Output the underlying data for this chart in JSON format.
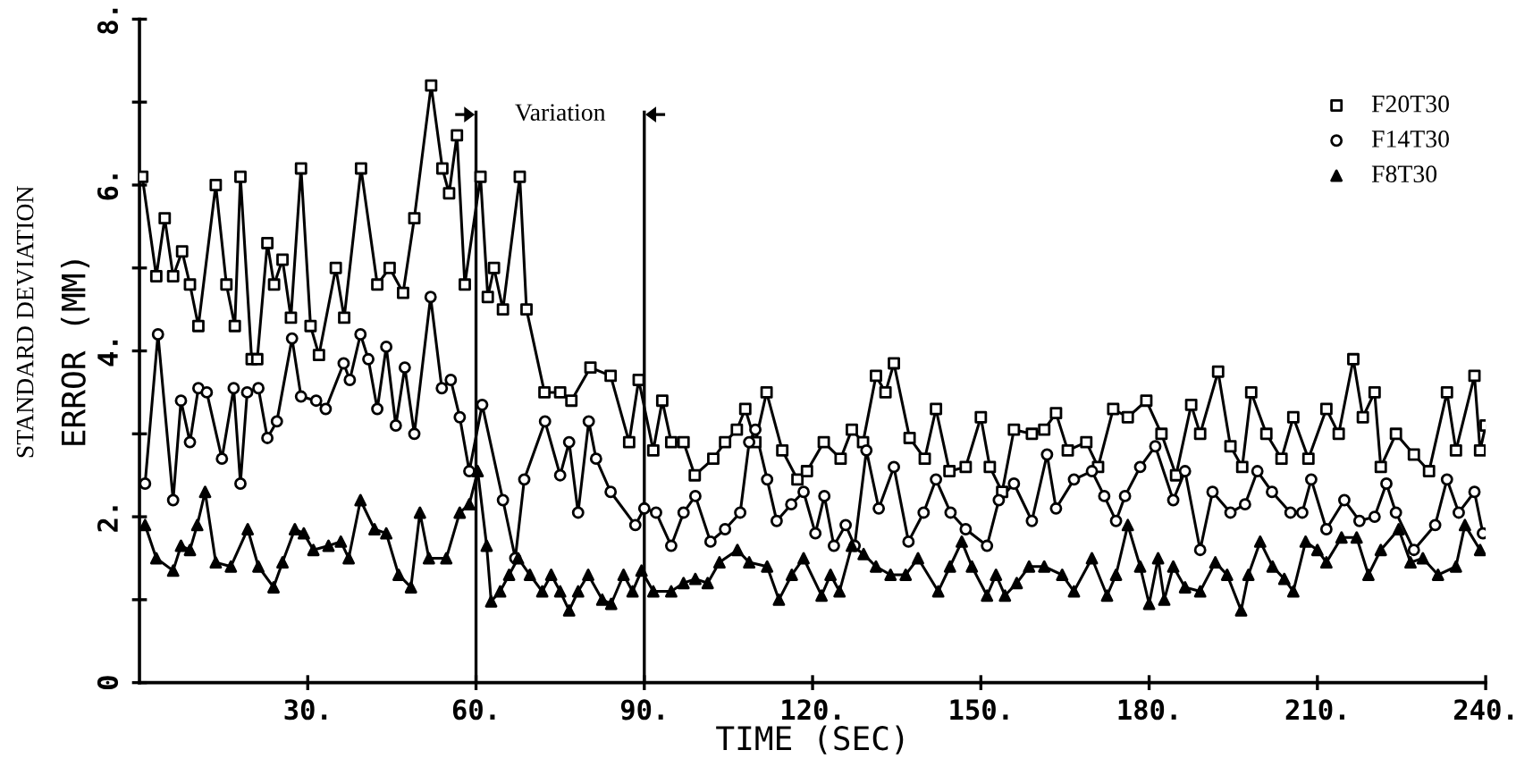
{
  "chart_data": {
    "type": "line",
    "xlabel": "TIME (SEC)",
    "ylabel": "ERROR (MM)",
    "annotations": [
      "STANDARD DEVIATION",
      "Variation"
    ],
    "xlim": [
      0,
      240
    ],
    "xticks": [
      {
        "value": 30,
        "label": "30."
      },
      {
        "value": 60,
        "label": "60."
      },
      {
        "value": 90,
        "label": "90."
      },
      {
        "value": 120,
        "label": "120."
      },
      {
        "value": 150,
        "label": "150."
      },
      {
        "value": 180,
        "label": "180."
      },
      {
        "value": 210,
        "label": "210."
      },
      {
        "value": 240,
        "label": "240."
      }
    ],
    "ylim": [
      0,
      8
    ],
    "yticks": [
      {
        "value": 0,
        "label": "0"
      },
      {
        "value": 1,
        "label": null
      },
      {
        "value": 2,
        "label": "2."
      },
      {
        "value": 3,
        "label": null
      },
      {
        "value": 4,
        "label": "4."
      },
      {
        "value": 5,
        "label": null
      },
      {
        "value": 6,
        "label": "6."
      },
      {
        "value": 7,
        "label": null
      },
      {
        "value": 8,
        "label": "8."
      }
    ],
    "ref_lines": [
      {
        "axis": "x",
        "value": 60,
        "color": "#000000"
      },
      {
        "axis": "x",
        "value": 90,
        "color": "#000000"
      }
    ],
    "grid": false,
    "legend": "top right",
    "line_style": "solid",
    "series": [
      {
        "name": "F20T30",
        "color": "#000000",
        "marker": "square",
        "x": [
          0.5,
          3,
          4.5,
          6,
          7.6,
          9,
          10.5,
          13.6,
          15.5,
          17,
          18,
          20,
          21,
          22.8,
          24,
          25.5,
          27,
          28.8,
          30.5,
          32,
          35,
          36.5,
          39.5,
          42.4,
          44.6,
          47,
          49,
          52,
          54,
          55.2,
          56.6,
          58,
          60.8,
          62.1,
          63.2,
          64.8,
          67.8,
          69,
          72.2,
          75,
          77,
          80.4,
          84,
          87.3,
          89,
          91.6,
          93.2,
          94.8,
          97,
          99,
          102.3,
          104.4,
          106.5,
          108,
          109.8,
          111.8,
          114.6,
          117.3,
          119,
          122,
          125,
          127,
          129,
          131.3,
          133,
          134.5,
          137.3,
          140,
          142,
          144.4,
          147.3,
          150,
          151.6,
          153.8,
          155.9,
          159.1,
          161.3,
          163.4,
          165.5,
          168.8,
          170.9,
          173.6,
          176.2,
          179.5,
          182.2,
          184.8,
          187.5,
          189.1,
          192.3,
          194.5,
          196.6,
          198.2,
          200.9,
          203.6,
          205.7,
          208.4,
          211.6,
          213.8,
          216.4,
          218.1,
          220.2,
          221.3,
          224,
          227.2,
          229.9,
          233.1,
          234.7,
          238,
          239,
          240
        ],
        "values": [
          6.1,
          4.9,
          5.6,
          4.9,
          5.2,
          4.8,
          4.3,
          6.0,
          4.8,
          4.3,
          6.1,
          3.9,
          3.9,
          5.3,
          4.8,
          5.1,
          4.4,
          6.2,
          4.3,
          3.95,
          5.0,
          4.4,
          6.2,
          4.8,
          5.0,
          4.7,
          5.6,
          7.2,
          6.2,
          5.9,
          6.6,
          4.8,
          6.1,
          4.65,
          5.0,
          4.5,
          6.1,
          4.5,
          3.5,
          3.5,
          3.4,
          3.8,
          3.7,
          2.9,
          3.65,
          2.8,
          3.4,
          2.9,
          2.9,
          2.5,
          2.7,
          2.9,
          3.05,
          3.3,
          2.9,
          3.5,
          2.8,
          2.45,
          2.55,
          2.9,
          2.7,
          3.05,
          2.9,
          3.7,
          3.5,
          3.85,
          2.95,
          2.7,
          3.3,
          2.55,
          2.6,
          3.2,
          2.6,
          2.3,
          3.05,
          3.0,
          3.05,
          3.25,
          2.8,
          2.9,
          2.6,
          3.3,
          3.2,
          3.4,
          3.0,
          2.5,
          3.35,
          3.0,
          3.75,
          2.85,
          2.6,
          3.5,
          3.0,
          2.7,
          3.2,
          2.7,
          3.3,
          3.0,
          3.9,
          3.2,
          3.5,
          2.6,
          3.0,
          2.75,
          2.55,
          3.5,
          2.8,
          3.7,
          2.8,
          3.1
        ]
      },
      {
        "name": "F14T30",
        "color": "#000000",
        "marker": "circle",
        "x": [
          1,
          3.3,
          6,
          7.4,
          9,
          10.5,
          12,
          14.7,
          16.8,
          18,
          19.2,
          21.2,
          22.8,
          24.5,
          27.2,
          28.8,
          31.5,
          33.2,
          36.4,
          37.5,
          39.4,
          40.8,
          42.4,
          44,
          45.7,
          47.3,
          49,
          51.9,
          53.9,
          55.5,
          57.1,
          58.8,
          61.1,
          64.8,
          67,
          68.6,
          72.3,
          75,
          76.6,
          78.2,
          80.1,
          81.4,
          84,
          88.4,
          90,
          92.1,
          94.8,
          97,
          99.1,
          101.8,
          104.4,
          107.1,
          108.7,
          109.8,
          111.9,
          113.6,
          116.2,
          118.4,
          120.5,
          122.1,
          123.8,
          125.9,
          127.5,
          129.6,
          131.8,
          134.5,
          137.1,
          139.8,
          142,
          144.6,
          147.3,
          151.1,
          153.2,
          155.9,
          159.1,
          161.8,
          163.4,
          166.6,
          169.8,
          172,
          174.1,
          175.7,
          178.4,
          181.1,
          184.3,
          186.4,
          189.1,
          191.3,
          194.5,
          197.1,
          199.3,
          201.9,
          205.2,
          207.3,
          208.9,
          211.6,
          214.8,
          217.5,
          220.2,
          222.3,
          224,
          227.2,
          231,
          233.1,
          235.2,
          238,
          239.5
        ],
        "values": [
          2.4,
          4.2,
          2.2,
          3.4,
          2.9,
          3.55,
          3.5,
          2.7,
          3.55,
          2.4,
          3.5,
          3.55,
          2.95,
          3.15,
          4.15,
          3.45,
          3.4,
          3.3,
          3.85,
          3.65,
          4.2,
          3.9,
          3.3,
          4.05,
          3.1,
          3.8,
          3.0,
          4.65,
          3.55,
          3.65,
          3.2,
          2.55,
          3.35,
          2.2,
          1.5,
          2.45,
          3.15,
          2.5,
          2.9,
          2.05,
          3.15,
          2.7,
          2.3,
          1.9,
          2.1,
          2.05,
          1.65,
          2.05,
          2.25,
          1.7,
          1.85,
          2.05,
          2.9,
          3.05,
          2.45,
          1.95,
          2.15,
          2.3,
          1.8,
          2.25,
          1.65,
          1.9,
          1.65,
          2.8,
          2.1,
          2.6,
          1.7,
          2.05,
          2.45,
          2.05,
          1.85,
          1.65,
          2.2,
          2.4,
          1.95,
          2.75,
          2.1,
          2.45,
          2.55,
          2.25,
          1.95,
          2.25,
          2.6,
          2.85,
          2.2,
          2.55,
          1.6,
          2.3,
          2.05,
          2.15,
          2.55,
          2.3,
          2.05,
          2.05,
          2.45,
          1.85,
          2.2,
          1.95,
          2.0,
          2.4,
          2.05,
          1.6,
          1.9,
          2.45,
          2.05,
          2.3,
          1.8
        ]
      },
      {
        "name": "F8T30",
        "color": "#000000",
        "marker": "triangle",
        "x": [
          1,
          3,
          6,
          7.4,
          9,
          10.3,
          11.7,
          13.6,
          16.3,
          19.3,
          21.2,
          23.9,
          25.5,
          27.7,
          29.3,
          31,
          33.7,
          35.9,
          37.3,
          39.4,
          41.9,
          44,
          46.2,
          48.4,
          50,
          51.6,
          54.7,
          57.1,
          58.8,
          60.3,
          61.9,
          62.7,
          64.3,
          65.9,
          67.5,
          69.6,
          71.8,
          73.4,
          75,
          76.6,
          78.2,
          80,
          82.5,
          84.1,
          86.3,
          87.9,
          89.5,
          91.6,
          94.8,
          97,
          99.1,
          101.3,
          103.4,
          106.6,
          108.7,
          111.9,
          114,
          116.3,
          118.4,
          121.6,
          123.2,
          124.8,
          127,
          129.1,
          131.3,
          133.9,
          136.6,
          138.8,
          142.4,
          144.5,
          146.6,
          148.4,
          151.1,
          152.7,
          154.3,
          156.4,
          158.6,
          161.3,
          164.5,
          166.6,
          169.8,
          172.5,
          174.1,
          176.2,
          178.4,
          180,
          181.6,
          182.7,
          184.3,
          186.4,
          189.1,
          191.8,
          193.9,
          196.4,
          197.7,
          199.8,
          202,
          204.1,
          205.7,
          207.9,
          210,
          211.6,
          214.3,
          217,
          219.1,
          221.3,
          224.5,
          226.6,
          228.8,
          231.5,
          234.7,
          236.3,
          239
        ],
        "values": [
          1.9,
          1.5,
          1.35,
          1.65,
          1.6,
          1.9,
          2.3,
          1.45,
          1.4,
          1.85,
          1.4,
          1.15,
          1.45,
          1.85,
          1.8,
          1.6,
          1.65,
          1.7,
          1.5,
          2.2,
          1.85,
          1.8,
          1.3,
          1.15,
          2.05,
          1.5,
          1.5,
          2.05,
          2.15,
          2.55,
          1.65,
          0.98,
          1.1,
          1.3,
          1.5,
          1.3,
          1.1,
          1.3,
          1.1,
          0.87,
          1.1,
          1.3,
          1.0,
          0.95,
          1.3,
          1.1,
          1.35,
          1.1,
          1.1,
          1.2,
          1.25,
          1.2,
          1.45,
          1.6,
          1.45,
          1.4,
          1.0,
          1.3,
          1.5,
          1.05,
          1.3,
          1.1,
          1.65,
          1.55,
          1.4,
          1.3,
          1.3,
          1.5,
          1.1,
          1.4,
          1.7,
          1.4,
          1.05,
          1.3,
          1.05,
          1.2,
          1.4,
          1.4,
          1.3,
          1.1,
          1.5,
          1.05,
          1.3,
          1.9,
          1.4,
          0.95,
          1.5,
          1.0,
          1.4,
          1.15,
          1.1,
          1.45,
          1.3,
          0.87,
          1.3,
          1.7,
          1.4,
          1.25,
          1.1,
          1.7,
          1.6,
          1.45,
          1.75,
          1.75,
          1.3,
          1.6,
          1.85,
          1.45,
          1.5,
          1.3,
          1.4,
          1.9,
          1.6
        ]
      }
    ]
  }
}
